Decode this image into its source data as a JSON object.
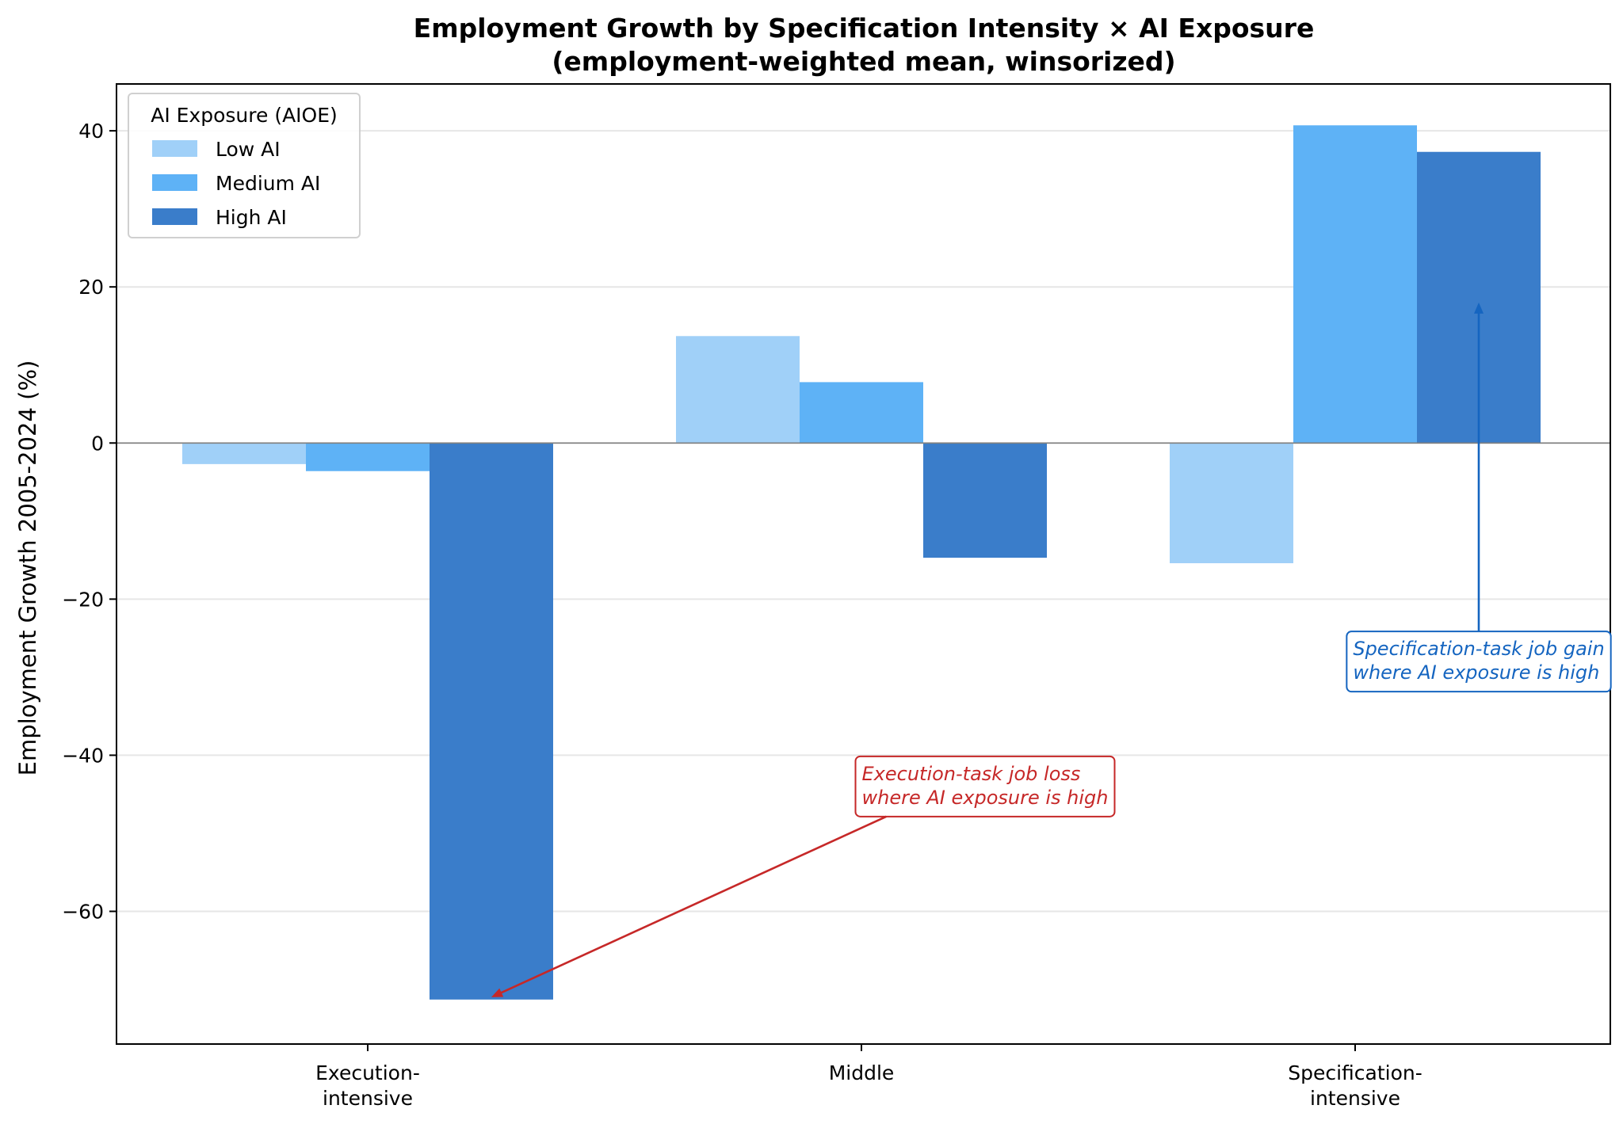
{
  "chart_data": {
    "type": "bar",
    "title": "Employment Growth by Specification Intensity × AI Exposure",
    "subtitle": "(employment-weighted mean, winsorized)",
    "xlabel": "",
    "ylabel": "Employment Growth 2005-2024 (%)",
    "ylim": [
      -77,
      46
    ],
    "yticks": [
      -60,
      -40,
      -20,
      0,
      20,
      40
    ],
    "ytick_labels": [
      "−60",
      "−40",
      "−20",
      "0",
      "20",
      "40"
    ],
    "grid": "y",
    "categories": [
      "Execution-intensive",
      "Middle",
      "Specification-intensive"
    ],
    "category_labels": [
      [
        "Execution-",
        "intensive"
      ],
      [
        "Middle"
      ],
      [
        "Specification-",
        "intensive"
      ]
    ],
    "series": [
      {
        "name": "Low AI",
        "color": "#a0d0f8",
        "values": [
          -2.7,
          13.7,
          -15.4
        ]
      },
      {
        "name": "Medium AI",
        "color": "#5eb2f6",
        "values": [
          -3.6,
          7.8,
          40.7
        ]
      },
      {
        "name": "High AI",
        "color": "#3a7dca",
        "values": [
          -71.3,
          -14.7,
          37.3
        ]
      }
    ],
    "legend": {
      "title": "AI Exposure (AIOE)",
      "placement": "top-left"
    },
    "annotations": [
      {
        "lines": [
          "Execution-task job loss",
          "where AI exposure is high"
        ],
        "color": "#c62828",
        "target_category": 0,
        "target_series": 2,
        "target_value": -71,
        "text_category_offset": 1.0,
        "text_value": -44
      },
      {
        "lines": [
          "Specification-task job gain",
          "where AI exposure is high"
        ],
        "color": "#1565c0",
        "target_category": 2,
        "target_series": 2,
        "target_value": 18,
        "text_category_offset": 0.0,
        "text_value": -28
      }
    ]
  }
}
